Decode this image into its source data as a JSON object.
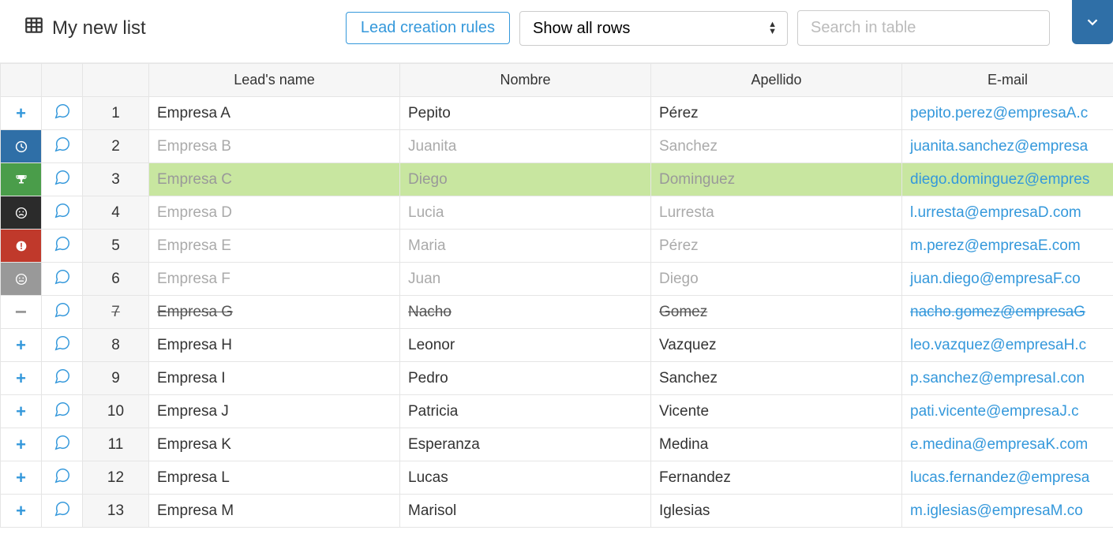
{
  "toolbar": {
    "title": "My new list",
    "lead_rules_label": "Lead creation rules",
    "filter_selected": "Show all rows",
    "search_placeholder": "Search in table"
  },
  "columns": {
    "lead": "Lead's name",
    "nombre": "Nombre",
    "apellido": "Apellido",
    "email": "E-mail"
  },
  "status_colors": {
    "plus": "#3498db",
    "clock_bg": "#2f6fa7",
    "trophy_bg": "#4a9d4a",
    "sad_bg": "#2b2b2b",
    "alert_bg": "#c0392b",
    "neutral_bg": "#999999",
    "minus": "#999999"
  },
  "rows": [
    {
      "num": "1",
      "status": "plus",
      "lead": "Empresa A",
      "nombre": "Pepito",
      "apellido": "Pérez",
      "email": "pepito.perez@empresaA.c",
      "style": "normal"
    },
    {
      "num": "2",
      "status": "clock",
      "lead": "Empresa B",
      "nombre": "Juanita",
      "apellido": "Sanchez",
      "email": "juanita.sanchez@empresa",
      "style": "muted"
    },
    {
      "num": "3",
      "status": "trophy",
      "lead": "Empresa C",
      "nombre": "Diego",
      "apellido": "Dominguez",
      "email": "diego.dominguez@empres",
      "style": "highlight"
    },
    {
      "num": "4",
      "status": "sad",
      "lead": "Empresa D",
      "nombre": "Lucia",
      "apellido": "Lurresta",
      "email": "l.urresta@empresaD.com",
      "style": "muted"
    },
    {
      "num": "5",
      "status": "alert",
      "lead": "Empresa E",
      "nombre": "Maria",
      "apellido": "Pérez",
      "email": "m.perez@empresaE.com",
      "style": "muted"
    },
    {
      "num": "6",
      "status": "neutral",
      "lead": "Empresa F",
      "nombre": "Juan",
      "apellido": "Diego",
      "email": "juan.diego@empresaF.co",
      "style": "muted"
    },
    {
      "num": "7",
      "status": "minus",
      "lead": "Empresa G",
      "nombre": "Nacho",
      "apellido": "Gomez",
      "email": "nacho.gomez@empresaG",
      "style": "strike"
    },
    {
      "num": "8",
      "status": "plus",
      "lead": "Empresa H",
      "nombre": "Leonor",
      "apellido": "Vazquez",
      "email": "leo.vazquez@empresaH.c",
      "style": "normal"
    },
    {
      "num": "9",
      "status": "plus",
      "lead": "Empresa I",
      "nombre": "Pedro",
      "apellido": "Sanchez",
      "email": "p.sanchez@empresaI.con",
      "style": "normal"
    },
    {
      "num": "10",
      "status": "plus",
      "lead": "Empresa J",
      "nombre": "Patricia",
      "apellido": "Vicente",
      "email": "pati.vicente@empresaJ.c",
      "style": "normal"
    },
    {
      "num": "11",
      "status": "plus",
      "lead": "Empresa K",
      "nombre": "Esperanza",
      "apellido": "Medina",
      "email": "e.medina@empresaK.com",
      "style": "normal"
    },
    {
      "num": "12",
      "status": "plus",
      "lead": "Empresa L",
      "nombre": "Lucas",
      "apellido": "Fernandez",
      "email": "lucas.fernandez@empresa",
      "style": "normal"
    },
    {
      "num": "13",
      "status": "plus",
      "lead": "Empresa M",
      "nombre": "Marisol",
      "apellido": "Iglesias",
      "email": "m.iglesias@empresaM.co",
      "style": "normal"
    }
  ]
}
